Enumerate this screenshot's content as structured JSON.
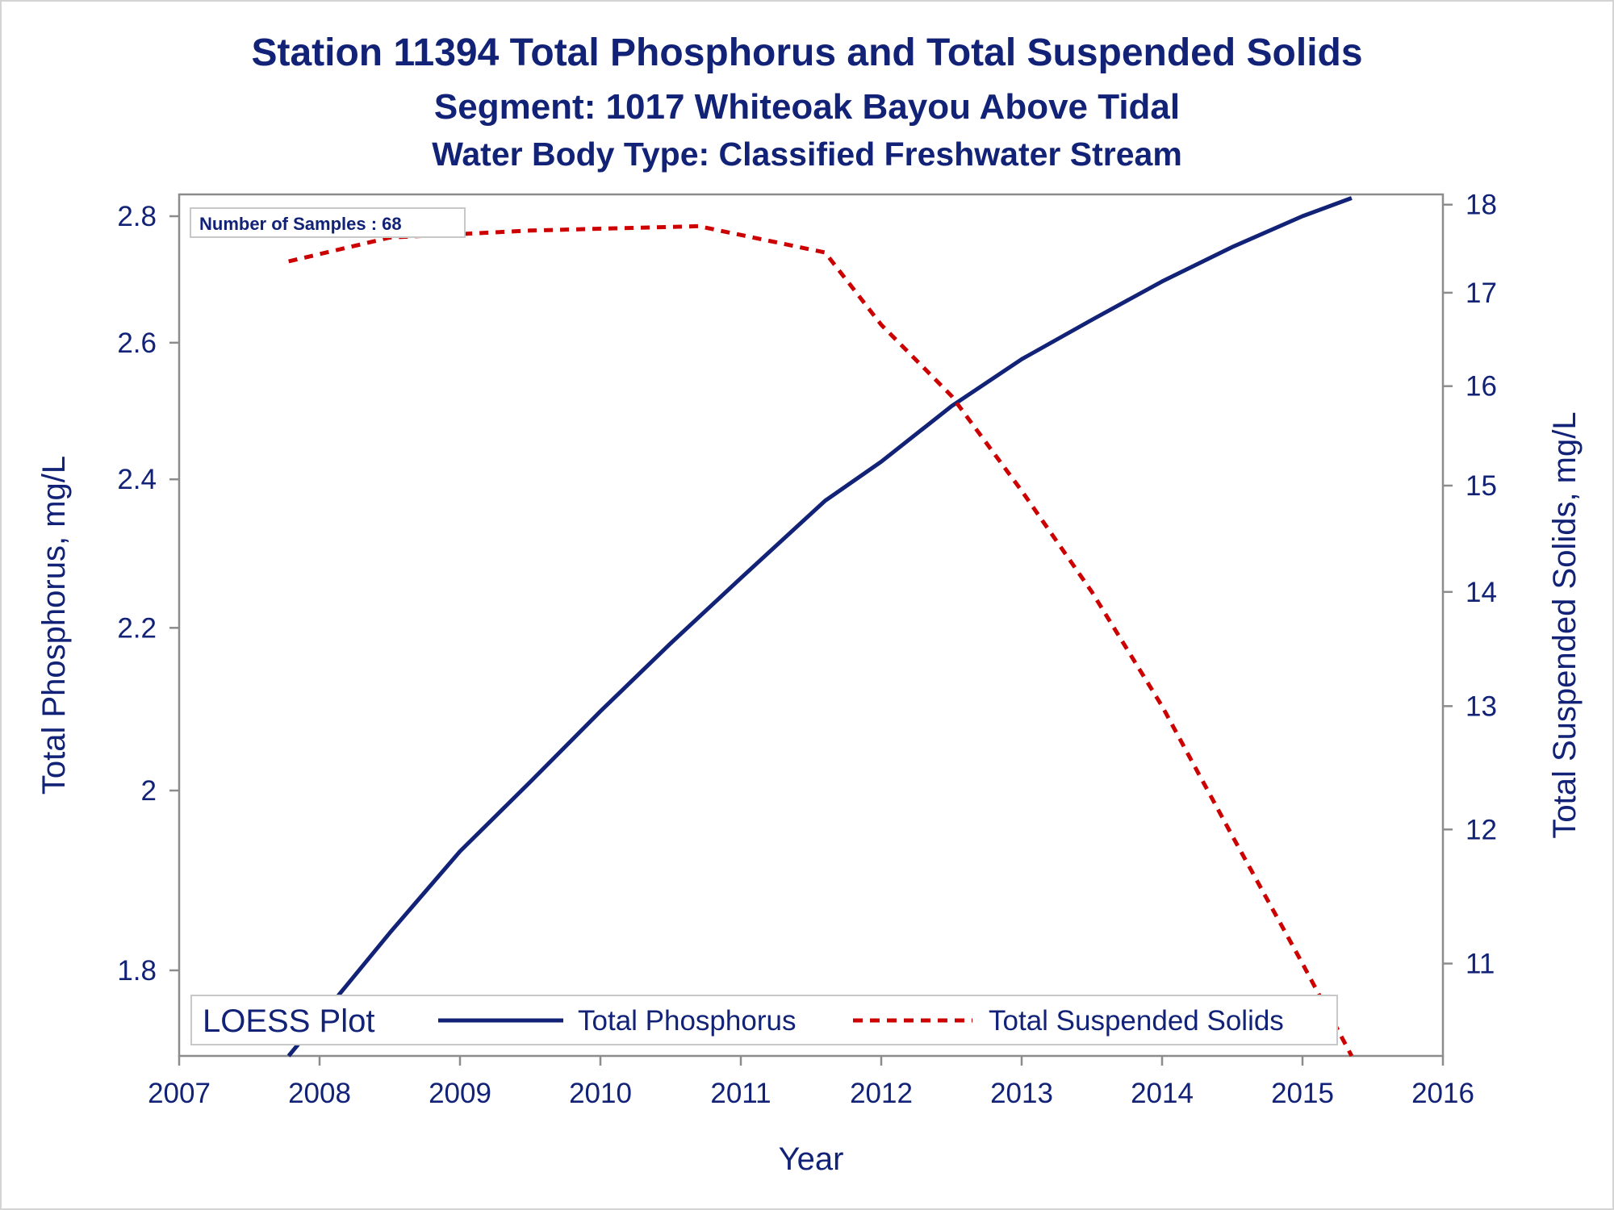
{
  "chart": {
    "title": "Station 11394  Total Phosphorus and Total Suspended Solids",
    "subtitle": "Segment: 1017  Whiteoak Bayou Above Tidal",
    "subtitle2": "Water Body Type: Classified Freshwater Stream",
    "sample_note": "Number of Samples : 68",
    "legend_title": "LOESS Plot",
    "colors": {
      "text": "#112277",
      "tp_line": "#112277",
      "tss_line": "#cc0000",
      "frame": "#8c8c8c"
    }
  },
  "chart_data": {
    "type": "line",
    "xlabel": "Year",
    "ylabel": "Total Phosphorus, mg/L",
    "y2label": "Total Suspended Solids, mg/L",
    "xlim": [
      2007,
      2016
    ],
    "ylim": [
      1.712,
      2.836
    ],
    "y2lim": [
      10.36,
      18.12
    ],
    "x_ticks": [
      "2007",
      "2008",
      "2009",
      "2010",
      "2011",
      "2012",
      "2013",
      "2014",
      "2015",
      "2016"
    ],
    "y_ticks": [
      "1.8",
      "2",
      "2.2",
      "2.4",
      "2.6",
      "2.8"
    ],
    "y2_ticks": [
      "11",
      "12",
      "13",
      "14",
      "15",
      "16",
      "17",
      "18"
    ],
    "y_scale": "log",
    "y2_scale": "log",
    "grid": false,
    "legend_position": "bottom-inside",
    "series": [
      {
        "name": "Total Phosphorus",
        "axis": "left",
        "style": "solid",
        "x": [
          2007.78,
          2008.5,
          2009.0,
          2009.5,
          2010.0,
          2010.5,
          2011.0,
          2011.6,
          2012.0,
          2012.5,
          2013.0,
          2013.5,
          2014.0,
          2014.5,
          2015.0,
          2015.35
        ],
        "y": [
          1.712,
          1.84,
          1.93,
          2.01,
          2.095,
          2.18,
          2.265,
          2.37,
          2.425,
          2.505,
          2.575,
          2.635,
          2.695,
          2.75,
          2.8,
          2.83
        ]
      },
      {
        "name": "Total Suspended Solids",
        "axis": "right",
        "style": "dashed",
        "x": [
          2007.78,
          2008.5,
          2009.5,
          2010.7,
          2011.6,
          2012.0,
          2012.5,
          2013.0,
          2013.5,
          2014.0,
          2014.5,
          2015.0,
          2015.35
        ],
        "y": [
          17.35,
          17.62,
          17.7,
          17.75,
          17.45,
          16.65,
          15.9,
          14.95,
          14.0,
          13.0,
          11.95,
          11.0,
          10.36
        ]
      }
    ]
  }
}
